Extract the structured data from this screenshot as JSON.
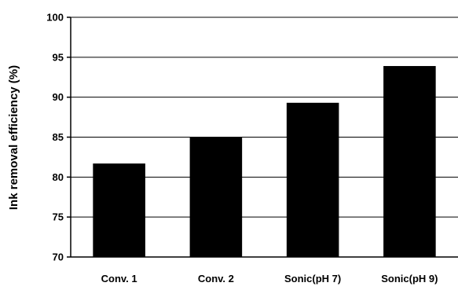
{
  "chart_data": {
    "type": "bar",
    "title": "",
    "xlabel": "",
    "ylabel": "Ink removal efficiency (%)",
    "categories": [
      "Conv. 1",
      "Conv. 2",
      "Sonic(pH 7)",
      "Sonic(pH 9)"
    ],
    "values": [
      81.7,
      85.0,
      89.3,
      93.9
    ],
    "ylim": [
      70,
      100
    ],
    "yticks": [
      "70",
      "75",
      "80",
      "85",
      "90",
      "95",
      "100"
    ],
    "grid": "horizontal",
    "legend": "none",
    "colors": {
      "bar": "#000000",
      "grid": "#000000",
      "axis": "#000000"
    }
  }
}
